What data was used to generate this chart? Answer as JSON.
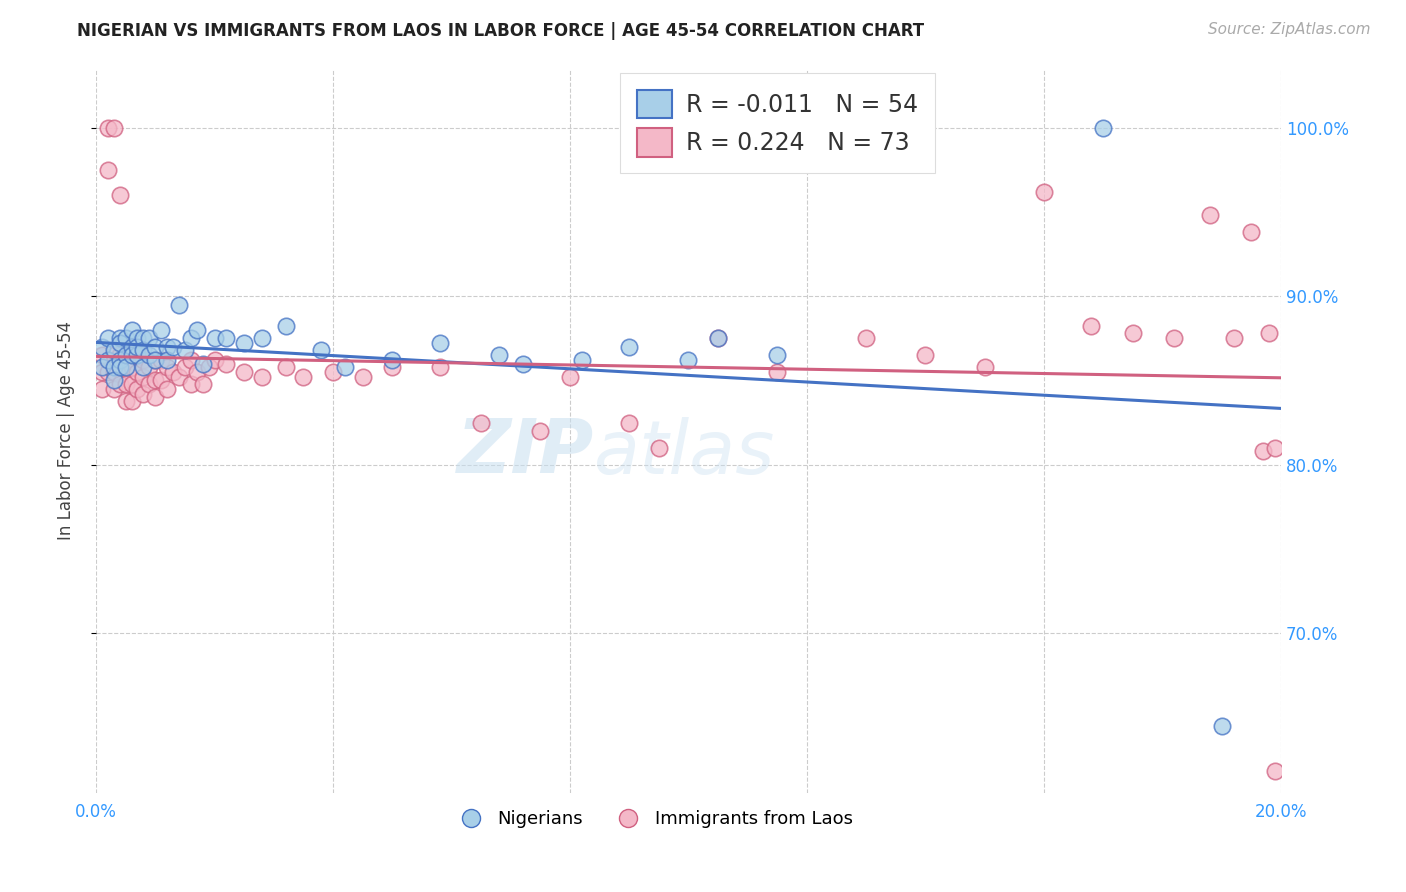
{
  "title": "NIGERIAN VS IMMIGRANTS FROM LAOS IN LABOR FORCE | AGE 45-54 CORRELATION CHART",
  "source": "Source: ZipAtlas.com",
  "ylabel": "In Labor Force | Age 45-54",
  "xmin": 0.0,
  "xmax": 0.2,
  "ymin": 0.605,
  "ymax": 1.035,
  "x_ticks": [
    0.0,
    0.04,
    0.08,
    0.12,
    0.16,
    0.2
  ],
  "y_ticks": [
    0.7,
    0.8,
    0.9,
    1.0
  ],
  "y_tick_labels": [
    "70.0%",
    "80.0%",
    "90.0%",
    "100.0%"
  ],
  "legend_r_blue": "-0.011",
  "legend_n_blue": "54",
  "legend_r_pink": "0.224",
  "legend_n_pink": "73",
  "legend_label_blue": "Nigerians",
  "legend_label_pink": "Immigrants from Laos",
  "color_blue": "#a8cfe8",
  "color_blue_edge": "#4472c4",
  "color_blue_line": "#4472c4",
  "color_pink": "#f4b8c8",
  "color_pink_edge": "#d06080",
  "color_pink_line": "#d06080",
  "watermark_zip": "ZIP",
  "watermark_atlas": "atlas",
  "nigerians_x": [
    0.001,
    0.001,
    0.002,
    0.002,
    0.003,
    0.003,
    0.003,
    0.004,
    0.004,
    0.004,
    0.004,
    0.005,
    0.005,
    0.005,
    0.006,
    0.006,
    0.006,
    0.007,
    0.007,
    0.007,
    0.008,
    0.008,
    0.008,
    0.009,
    0.009,
    0.01,
    0.01,
    0.011,
    0.012,
    0.012,
    0.013,
    0.014,
    0.015,
    0.016,
    0.017,
    0.018,
    0.02,
    0.022,
    0.025,
    0.028,
    0.032,
    0.038,
    0.042,
    0.05,
    0.058,
    0.068,
    0.072,
    0.082,
    0.09,
    0.1,
    0.105,
    0.115,
    0.17,
    0.19
  ],
  "nigerians_y": [
    0.87,
    0.858,
    0.875,
    0.862,
    0.868,
    0.858,
    0.85,
    0.875,
    0.862,
    0.872,
    0.858,
    0.875,
    0.865,
    0.858,
    0.88,
    0.87,
    0.865,
    0.875,
    0.865,
    0.87,
    0.875,
    0.868,
    0.858,
    0.875,
    0.865,
    0.87,
    0.862,
    0.88,
    0.87,
    0.862,
    0.87,
    0.895,
    0.868,
    0.875,
    0.88,
    0.86,
    0.875,
    0.875,
    0.872,
    0.875,
    0.882,
    0.868,
    0.858,
    0.862,
    0.872,
    0.865,
    0.86,
    0.862,
    0.87,
    0.862,
    0.875,
    0.865,
    1.0,
    0.645
  ],
  "laos_x": [
    0.001,
    0.001,
    0.001,
    0.002,
    0.002,
    0.002,
    0.003,
    0.003,
    0.003,
    0.003,
    0.004,
    0.004,
    0.004,
    0.005,
    0.005,
    0.005,
    0.006,
    0.006,
    0.006,
    0.007,
    0.007,
    0.007,
    0.008,
    0.008,
    0.008,
    0.009,
    0.009,
    0.01,
    0.01,
    0.01,
    0.011,
    0.011,
    0.012,
    0.012,
    0.013,
    0.014,
    0.015,
    0.016,
    0.016,
    0.017,
    0.018,
    0.019,
    0.02,
    0.022,
    0.025,
    0.028,
    0.032,
    0.035,
    0.04,
    0.045,
    0.05,
    0.058,
    0.065,
    0.075,
    0.08,
    0.09,
    0.095,
    0.105,
    0.115,
    0.13,
    0.14,
    0.15,
    0.16,
    0.168,
    0.175,
    0.182,
    0.188,
    0.192,
    0.195,
    0.197,
    0.198,
    0.199,
    0.199
  ],
  "laos_y": [
    0.865,
    0.855,
    0.845,
    1.0,
    0.975,
    0.855,
    1.0,
    0.865,
    0.855,
    0.845,
    0.96,
    0.865,
    0.848,
    0.858,
    0.848,
    0.838,
    0.858,
    0.848,
    0.838,
    0.868,
    0.855,
    0.845,
    0.862,
    0.852,
    0.842,
    0.858,
    0.848,
    0.862,
    0.85,
    0.84,
    0.862,
    0.85,
    0.858,
    0.845,
    0.855,
    0.852,
    0.858,
    0.862,
    0.848,
    0.855,
    0.848,
    0.858,
    0.862,
    0.86,
    0.855,
    0.852,
    0.858,
    0.852,
    0.855,
    0.852,
    0.858,
    0.858,
    0.825,
    0.82,
    0.852,
    0.825,
    0.81,
    0.875,
    0.855,
    0.875,
    0.865,
    0.858,
    0.962,
    0.882,
    0.878,
    0.875,
    0.948,
    0.875,
    0.938,
    0.808,
    0.878,
    0.81,
    0.618
  ]
}
